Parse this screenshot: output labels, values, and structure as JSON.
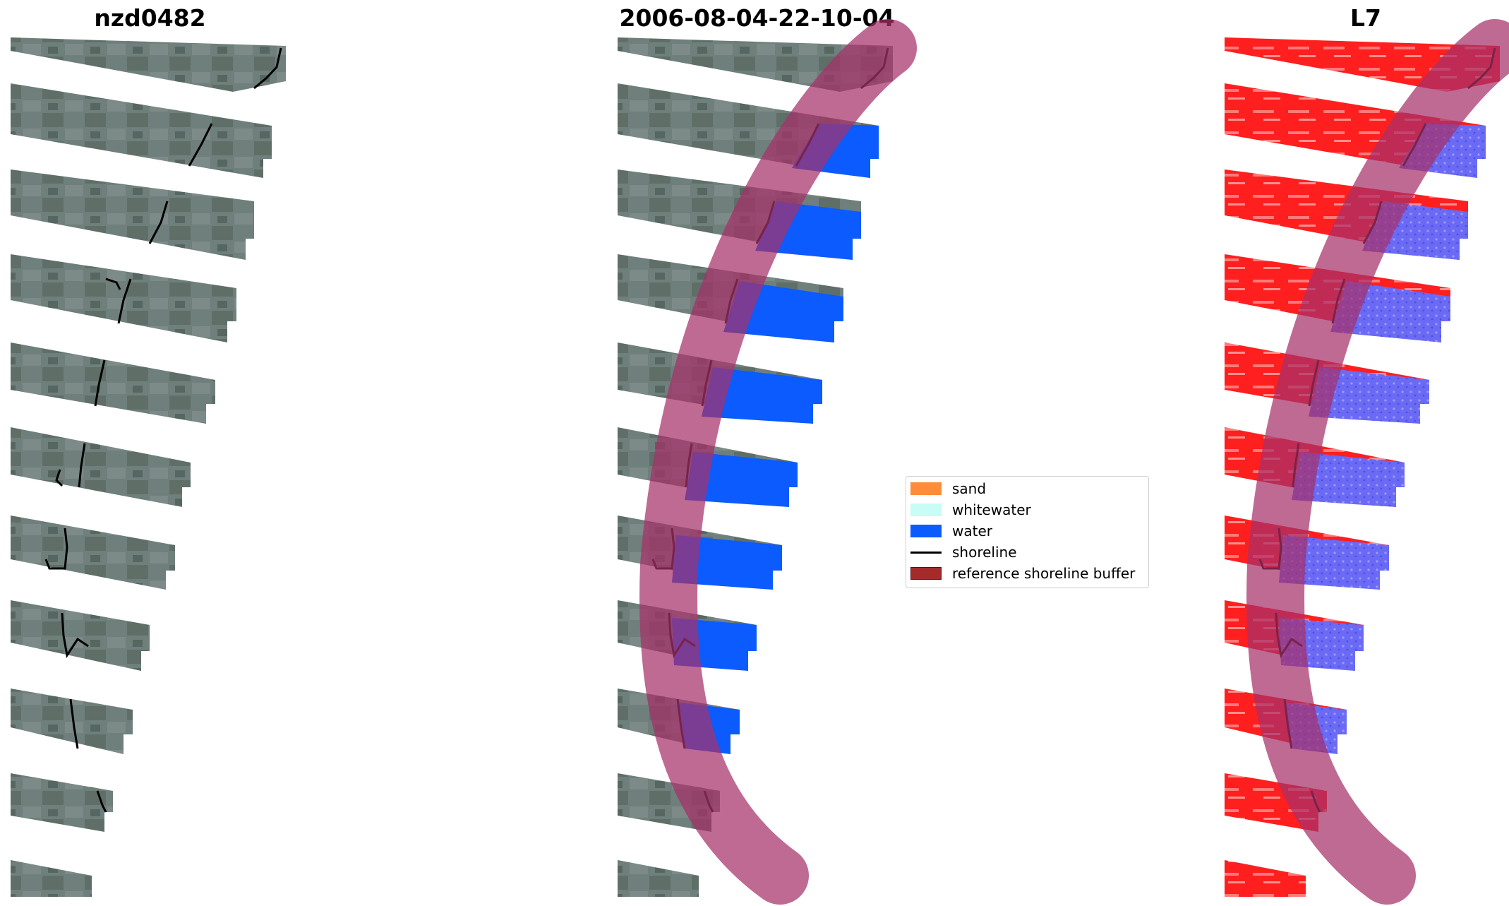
{
  "panels": [
    {
      "title": "nzd0482"
    },
    {
      "title": "2006-08-04-22-10-04"
    },
    {
      "title": "L7"
    }
  ],
  "legend": {
    "items": [
      {
        "label": "sand",
        "color": "#ff8c3a"
      },
      {
        "label": "whitewater",
        "color": "#c8fdf7"
      },
      {
        "label": "water",
        "color": "#0b5bff"
      },
      {
        "label": "shoreline",
        "color": "#000000"
      },
      {
        "label": "reference shoreline buffer",
        "color": "#a52a2a"
      }
    ]
  },
  "colors": {
    "rgb_land": "#6f7f80",
    "rgb_sea": "#5e82a0",
    "water_class": "#0b5bff",
    "buffer_overlay": "#a6306a",
    "l7_land": "#ff2020",
    "l7_water": "#6a6aff"
  }
}
